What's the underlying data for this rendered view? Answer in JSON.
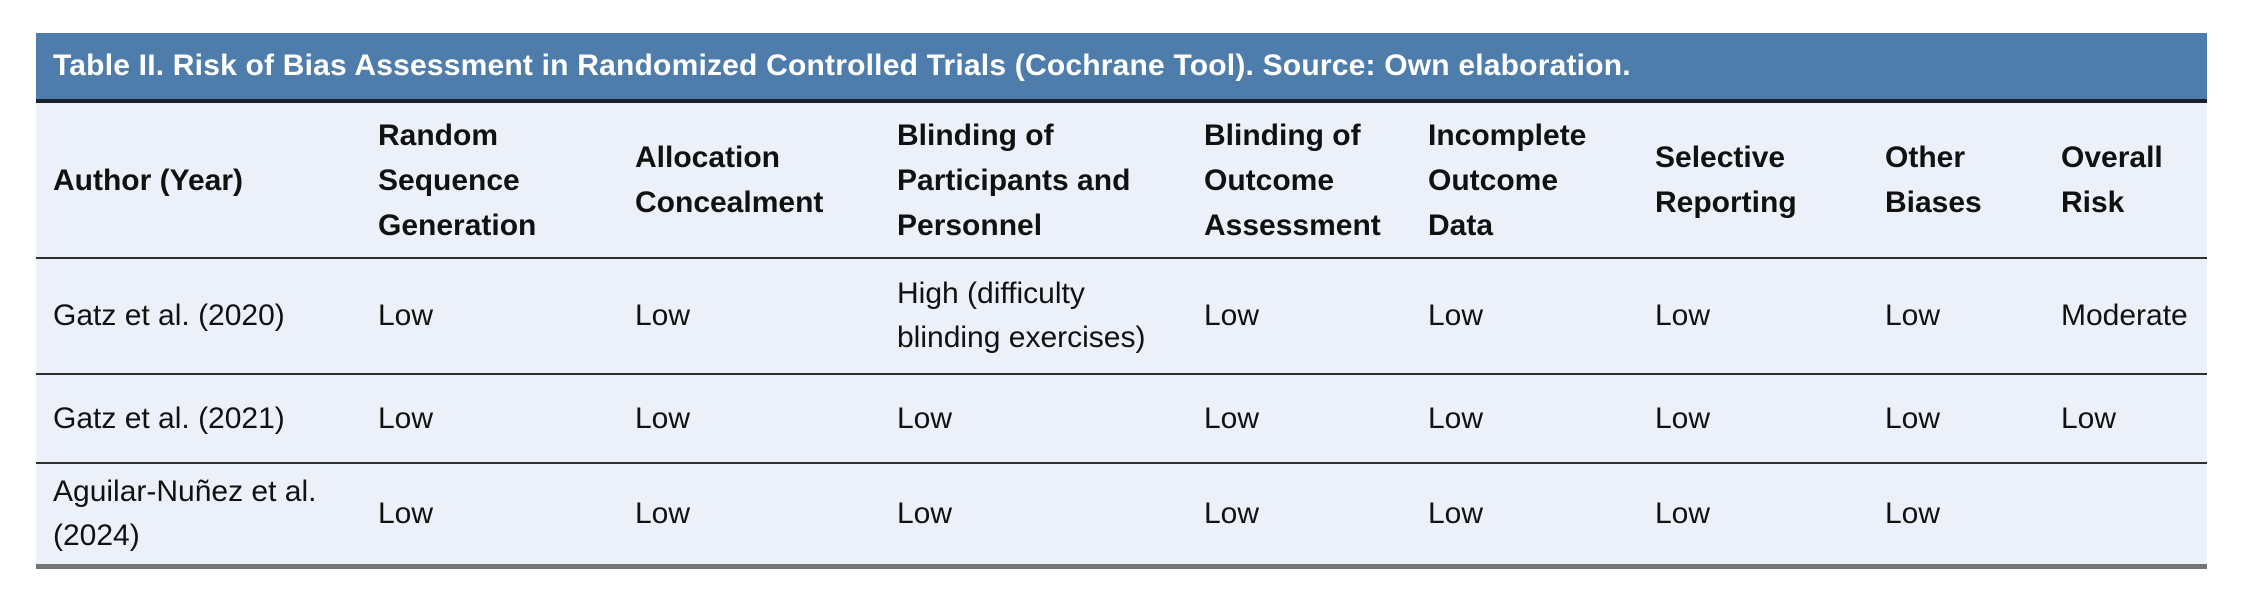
{
  "title_bar": {
    "text": "Table II. Risk of Bias Assessment in Randomized Controlled Trials (Cochrane Tool). Source: Own elaboration."
  },
  "table": {
    "columns": [
      "Author (Year)",
      "Random Sequence Generation",
      "Allocation Concealment",
      "Blinding of Participants and Personnel",
      "Blinding of Outcome Assessment",
      "Incomplete Outcome Data",
      "Selective Reporting",
      "Other Biases",
      "Overall Risk"
    ],
    "rows": [
      [
        "Gatz et al. (2020)",
        "Low",
        "Low",
        "High (difficulty blinding exercises)",
        "Low",
        "Low",
        "Low",
        "Low",
        "Moderate"
      ],
      [
        "Gatz et al. (2021)",
        "Low",
        "Low",
        "Low",
        "Low",
        "Low",
        "Low",
        "Low",
        "Low"
      ],
      [
        "Aguilar-Nuñez et al. (2024)",
        "Low",
        "Low",
        "Low",
        "Low",
        "Low",
        "Low",
        "Low",
        ""
      ]
    ]
  },
  "colors": {
    "title_bar_bg": "#4e7dab",
    "title_text": "#ffffff",
    "title_border": "#1b212a",
    "cell_bg": "#ecf0f8",
    "row_border": "#2f2f2f",
    "bottom_border": "#747474",
    "text": "#111111"
  }
}
